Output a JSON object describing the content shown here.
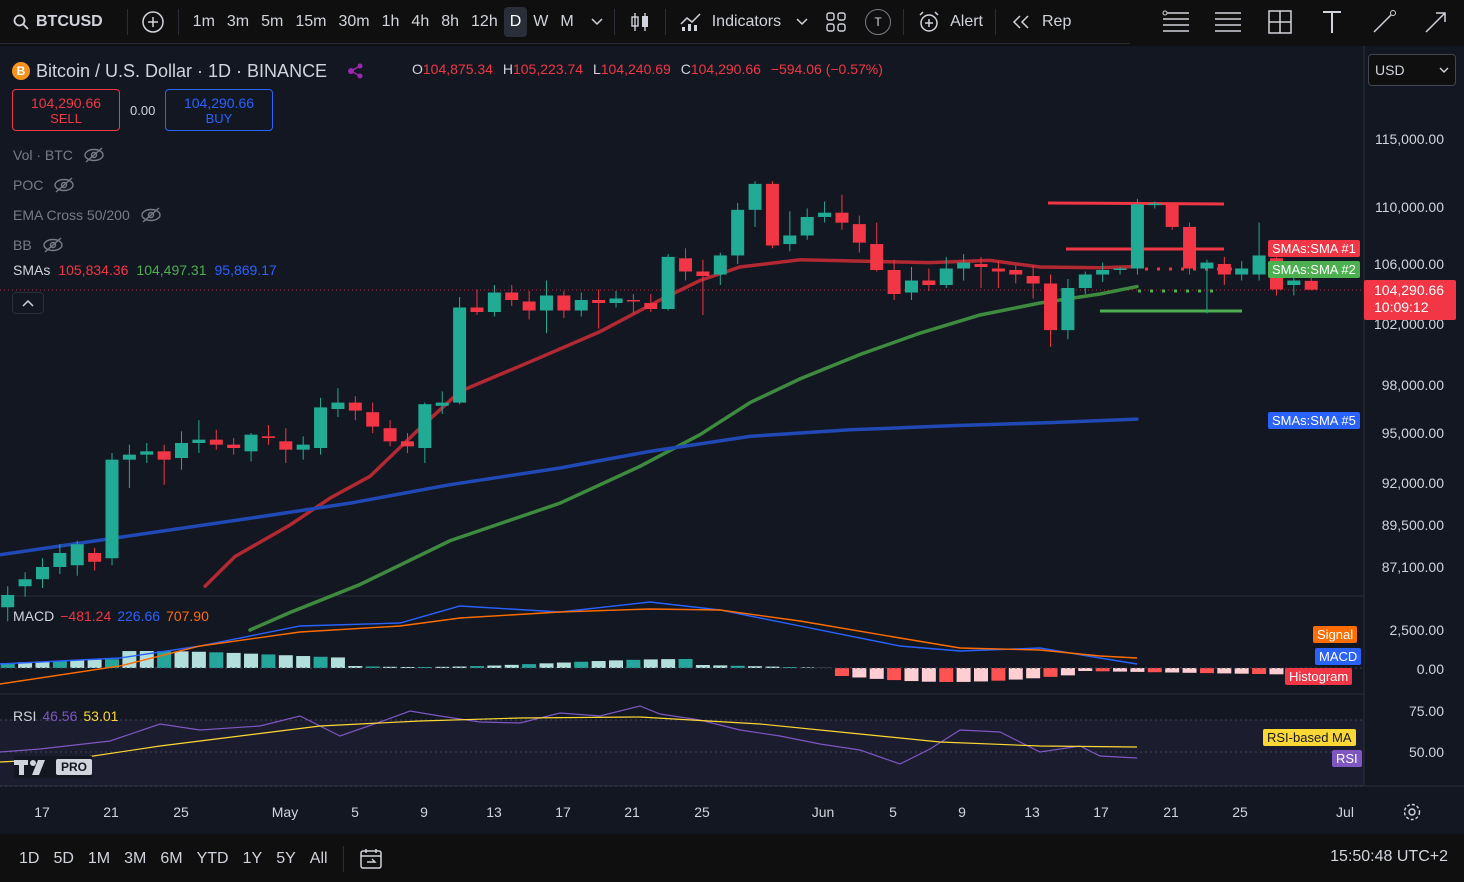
{
  "toolbar": {
    "symbol": "BTCUSD",
    "timeframes": [
      "1m",
      "3m",
      "5m",
      "15m",
      "30m",
      "1h",
      "4h",
      "8h",
      "12h",
      "D",
      "W",
      "M"
    ],
    "active_timeframe": "D",
    "indicators_label": "Indicators",
    "alert_label": "Alert",
    "replay_label": "Rep",
    "t_badge": "T"
  },
  "legend": {
    "coin_symbol": "B",
    "title": "Bitcoin / U.S. Dollar · 1D · BINANCE",
    "o_key": "O",
    "o": "104,875.34",
    "h_key": "H",
    "h": "105,223.74",
    "l_key": "L",
    "l": "104,240.69",
    "c_key": "C",
    "c": "104,290.66",
    "change": "−594.06 (−0.57%)"
  },
  "trade": {
    "sell_price": "104,290.66",
    "sell_label": "SELL",
    "spread": "0.00",
    "buy_price": "104,290.66",
    "buy_label": "BUY"
  },
  "indicators": [
    {
      "name": "Vol · BTC"
    },
    {
      "name": "POC"
    },
    {
      "name": "EMA Cross 50/200"
    },
    {
      "name": "BB"
    }
  ],
  "smas": {
    "label": "SMAs",
    "v1": "105,834.36",
    "v2": "104,497.31",
    "v3": "95,869.17"
  },
  "currency": "USD",
  "price_axis": [
    "115,000.00",
    "110,000.00",
    "106,000.00",
    "102,000.00",
    "98,000.00",
    "95,000.00",
    "92,000.00",
    "89,500.00",
    "87,100.00"
  ],
  "tags": {
    "sma1": "SMAs:SMA #1",
    "sma2": "SMAs:SMA #2",
    "sma5": "SMAs:SMA #5",
    "last_price": "104,290.66",
    "countdown": "10:09:12"
  },
  "macd": {
    "label": "MACD",
    "v1": "−481.24",
    "v2": "226.66",
    "v3": "707.90",
    "axis": [
      "2,500.00",
      "0.00"
    ],
    "tag_signal": "Signal",
    "tag_macd": "MACD",
    "tag_hist": "Histogram"
  },
  "rsi": {
    "label": "RSI",
    "v1": "46.56",
    "v2": "53.01",
    "axis": [
      "75.00",
      "50.00"
    ],
    "tag_ma": "RSI-based MA",
    "tag_rsi": "RSI"
  },
  "logo_text": "PRO",
  "dates": [
    "17",
    "21",
    "25",
    "May",
    "5",
    "9",
    "13",
    "17",
    "21",
    "25",
    "Jun",
    "5",
    "9",
    "13",
    "17",
    "21",
    "25",
    "Jul"
  ],
  "ranges": [
    "1D",
    "5D",
    "1M",
    "3M",
    "6M",
    "YTD",
    "1Y",
    "5Y",
    "All"
  ],
  "clock": "15:50:48 UTC+2",
  "colors": {
    "up": "#22ab94",
    "down": "#f23645",
    "sma1": "#b22833",
    "sma2": "#3e8a3e",
    "sma5": "#2149b5"
  },
  "candles": [
    {
      "o": 84800,
      "h": 86000,
      "l": 84000,
      "c": 85500
    },
    {
      "o": 86000,
      "h": 86800,
      "l": 85400,
      "c": 86400
    },
    {
      "o": 86400,
      "h": 87600,
      "l": 85900,
      "c": 87100
    },
    {
      "o": 87100,
      "h": 88400,
      "l": 86700,
      "c": 87900
    },
    {
      "o": 87200,
      "h": 88600,
      "l": 86600,
      "c": 88400
    },
    {
      "o": 87900,
      "h": 88200,
      "l": 86900,
      "c": 87400
    },
    {
      "o": 87600,
      "h": 93800,
      "l": 87200,
      "c": 93400
    },
    {
      "o": 93400,
      "h": 94300,
      "l": 91700,
      "c": 93700
    },
    {
      "o": 93700,
      "h": 94400,
      "l": 93200,
      "c": 93900
    },
    {
      "o": 93900,
      "h": 94300,
      "l": 91900,
      "c": 93400
    },
    {
      "o": 93500,
      "h": 95100,
      "l": 92800,
      "c": 94400
    },
    {
      "o": 94400,
      "h": 95800,
      "l": 93800,
      "c": 94600
    },
    {
      "o": 94600,
      "h": 95200,
      "l": 94000,
      "c": 94300
    },
    {
      "o": 94300,
      "h": 94700,
      "l": 93700,
      "c": 94100
    },
    {
      "o": 93900,
      "h": 95000,
      "l": 93300,
      "c": 94900
    },
    {
      "o": 94800,
      "h": 95500,
      "l": 94300,
      "c": 94700
    },
    {
      "o": 94500,
      "h": 95300,
      "l": 93200,
      "c": 94000
    },
    {
      "o": 94000,
      "h": 94800,
      "l": 93400,
      "c": 94300
    },
    {
      "o": 94100,
      "h": 97200,
      "l": 93700,
      "c": 96600
    },
    {
      "o": 96500,
      "h": 97800,
      "l": 96000,
      "c": 96900
    },
    {
      "o": 96900,
      "h": 97300,
      "l": 95800,
      "c": 96400
    },
    {
      "o": 96300,
      "h": 96900,
      "l": 95000,
      "c": 95400
    },
    {
      "o": 95300,
      "h": 95800,
      "l": 94200,
      "c": 94500
    },
    {
      "o": 94500,
      "h": 95000,
      "l": 93800,
      "c": 94200
    },
    {
      "o": 94100,
      "h": 96900,
      "l": 93200,
      "c": 96800
    },
    {
      "o": 96700,
      "h": 97600,
      "l": 96200,
      "c": 96900
    },
    {
      "o": 96900,
      "h": 103800,
      "l": 96800,
      "c": 103100
    },
    {
      "o": 103100,
      "h": 104300,
      "l": 102600,
      "c": 102800
    },
    {
      "o": 102800,
      "h": 104600,
      "l": 102500,
      "c": 104100
    },
    {
      "o": 104100,
      "h": 104600,
      "l": 103200,
      "c": 103600
    },
    {
      "o": 103500,
      "h": 104200,
      "l": 102300,
      "c": 102900
    },
    {
      "o": 102900,
      "h": 104900,
      "l": 101400,
      "c": 103900
    },
    {
      "o": 103900,
      "h": 104200,
      "l": 102400,
      "c": 102900
    },
    {
      "o": 102900,
      "h": 104100,
      "l": 102500,
      "c": 103600
    },
    {
      "o": 103600,
      "h": 104300,
      "l": 101700,
      "c": 103400
    },
    {
      "o": 103400,
      "h": 104200,
      "l": 103100,
      "c": 103700
    },
    {
      "o": 103600,
      "h": 104000,
      "l": 102700,
      "c": 103500
    },
    {
      "o": 103400,
      "h": 104000,
      "l": 102800,
      "c": 103000
    },
    {
      "o": 103000,
      "h": 106700,
      "l": 102900,
      "c": 106500
    },
    {
      "o": 106400,
      "h": 107100,
      "l": 104900,
      "c": 105500
    },
    {
      "o": 105500,
      "h": 106300,
      "l": 102600,
      "c": 105200
    },
    {
      "o": 105300,
      "h": 106800,
      "l": 104600,
      "c": 106600
    },
    {
      "o": 106600,
      "h": 110300,
      "l": 106000,
      "c": 109800
    },
    {
      "o": 109800,
      "h": 111900,
      "l": 108600,
      "c": 111700
    },
    {
      "o": 111700,
      "h": 111900,
      "l": 107100,
      "c": 107300
    },
    {
      "o": 107400,
      "h": 109700,
      "l": 106900,
      "c": 108000
    },
    {
      "o": 108000,
      "h": 109900,
      "l": 107700,
      "c": 109300
    },
    {
      "o": 109300,
      "h": 110400,
      "l": 108900,
      "c": 109600
    },
    {
      "o": 109600,
      "h": 110900,
      "l": 108400,
      "c": 108900
    },
    {
      "o": 108800,
      "h": 109400,
      "l": 106800,
      "c": 107500
    },
    {
      "o": 107400,
      "h": 108900,
      "l": 105500,
      "c": 105600
    },
    {
      "o": 105600,
      "h": 106300,
      "l": 103600,
      "c": 104000
    },
    {
      "o": 104100,
      "h": 105800,
      "l": 103600,
      "c": 104900
    },
    {
      "o": 104900,
      "h": 105700,
      "l": 104200,
      "c": 104600
    },
    {
      "o": 104600,
      "h": 106500,
      "l": 104400,
      "c": 105700
    },
    {
      "o": 105700,
      "h": 106700,
      "l": 104900,
      "c": 106100
    },
    {
      "o": 106000,
      "h": 106500,
      "l": 104400,
      "c": 105800
    },
    {
      "o": 105700,
      "h": 106200,
      "l": 104400,
      "c": 105500
    },
    {
      "o": 105600,
      "h": 105900,
      "l": 104700,
      "c": 105300
    },
    {
      "o": 105200,
      "h": 105900,
      "l": 103700,
      "c": 104700
    },
    {
      "o": 104700,
      "h": 105300,
      "l": 100500,
      "c": 101600
    },
    {
      "o": 101600,
      "h": 105000,
      "l": 101000,
      "c": 104400
    },
    {
      "o": 104400,
      "h": 105500,
      "l": 104000,
      "c": 105300
    },
    {
      "o": 105300,
      "h": 106100,
      "l": 104800,
      "c": 105600
    },
    {
      "o": 105600,
      "h": 105800,
      "l": 105300,
      "c": 105700
    },
    {
      "o": 105700,
      "h": 110600,
      "l": 105300,
      "c": 110200
    },
    {
      "o": 110200,
      "h": 110400,
      "l": 109900,
      "c": 110250
    },
    {
      "o": 110200,
      "h": 110300,
      "l": 108400,
      "c": 108600
    },
    {
      "o": 108600,
      "h": 108900,
      "l": 105300,
      "c": 105700
    },
    {
      "o": 105700,
      "h": 106300,
      "l": 102700,
      "c": 106100
    },
    {
      "o": 106000,
      "h": 106500,
      "l": 104600,
      "c": 105300
    },
    {
      "o": 105300,
      "h": 106200,
      "l": 104900,
      "c": 105700
    },
    {
      "o": 105300,
      "h": 108900,
      "l": 104900,
      "c": 106600
    },
    {
      "o": 106400,
      "h": 107600,
      "l": 103900,
      "c": 104300
    },
    {
      "o": 104600,
      "h": 105300,
      "l": 103900,
      "c": 104900
    },
    {
      "o": 104875,
      "h": 105224,
      "l": 104241,
      "c": 104291
    }
  ]
}
